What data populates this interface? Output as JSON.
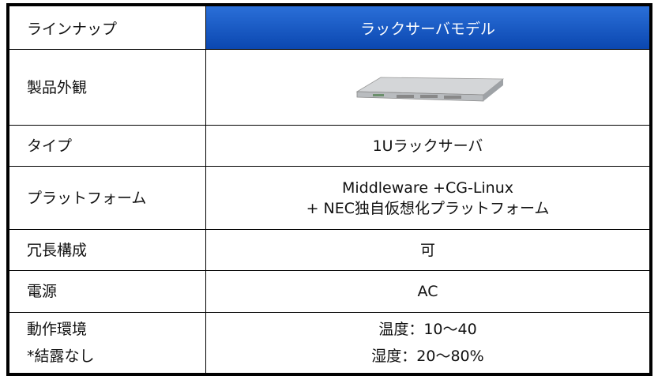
{
  "table": {
    "header": [
      "ラインナップ",
      "ラックサーバモデル"
    ],
    "rows": [
      {
        "label": [
          "製品外観"
        ],
        "value": []
      },
      {
        "label": [
          "タイプ"
        ],
        "value": [
          "1Uラックサーバ"
        ]
      },
      {
        "label": [
          "プラットフォーム"
        ],
        "value": [
          "Middleware +CG-Linux",
          "+ NEC独自仮想化プラットフォーム"
        ]
      },
      {
        "label": [
          "冗長構成"
        ],
        "value": [
          "可"
        ]
      },
      {
        "label": [
          "電源"
        ],
        "value": [
          "AC"
        ]
      },
      {
        "label": [
          "動作環境",
          "*結露なし"
        ],
        "value": [
          "温度：10〜40",
          "湿度：20〜80%"
        ]
      }
    ]
  }
}
